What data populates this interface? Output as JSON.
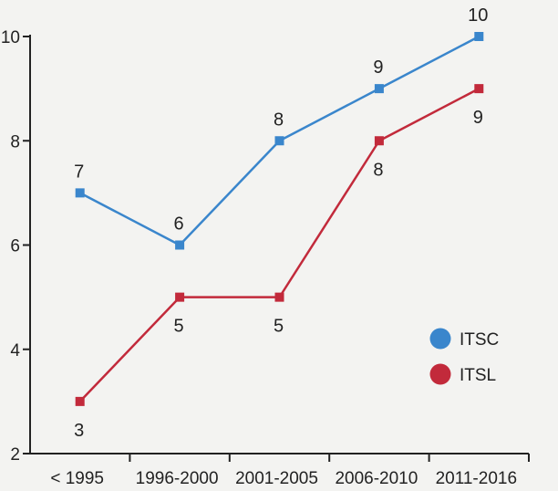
{
  "chart_data": {
    "type": "line",
    "title": "",
    "xlabel": "",
    "ylabel": "",
    "ylim": [
      2,
      10
    ],
    "yticks": [
      2,
      4,
      6,
      8,
      10
    ],
    "categories": [
      "< 1995",
      "1996-2000",
      "2001-2005",
      "2006-2010",
      "2011-2016"
    ],
    "legend_position": "right",
    "series": [
      {
        "name": "ITSC",
        "color": "#3a86cc",
        "label_position": "above",
        "values": [
          7,
          6,
          8,
          9,
          10
        ]
      },
      {
        "name": "ITSL",
        "color": "#c22a3b",
        "label_position": "below",
        "values": [
          3,
          5,
          5,
          8,
          9
        ]
      }
    ]
  }
}
